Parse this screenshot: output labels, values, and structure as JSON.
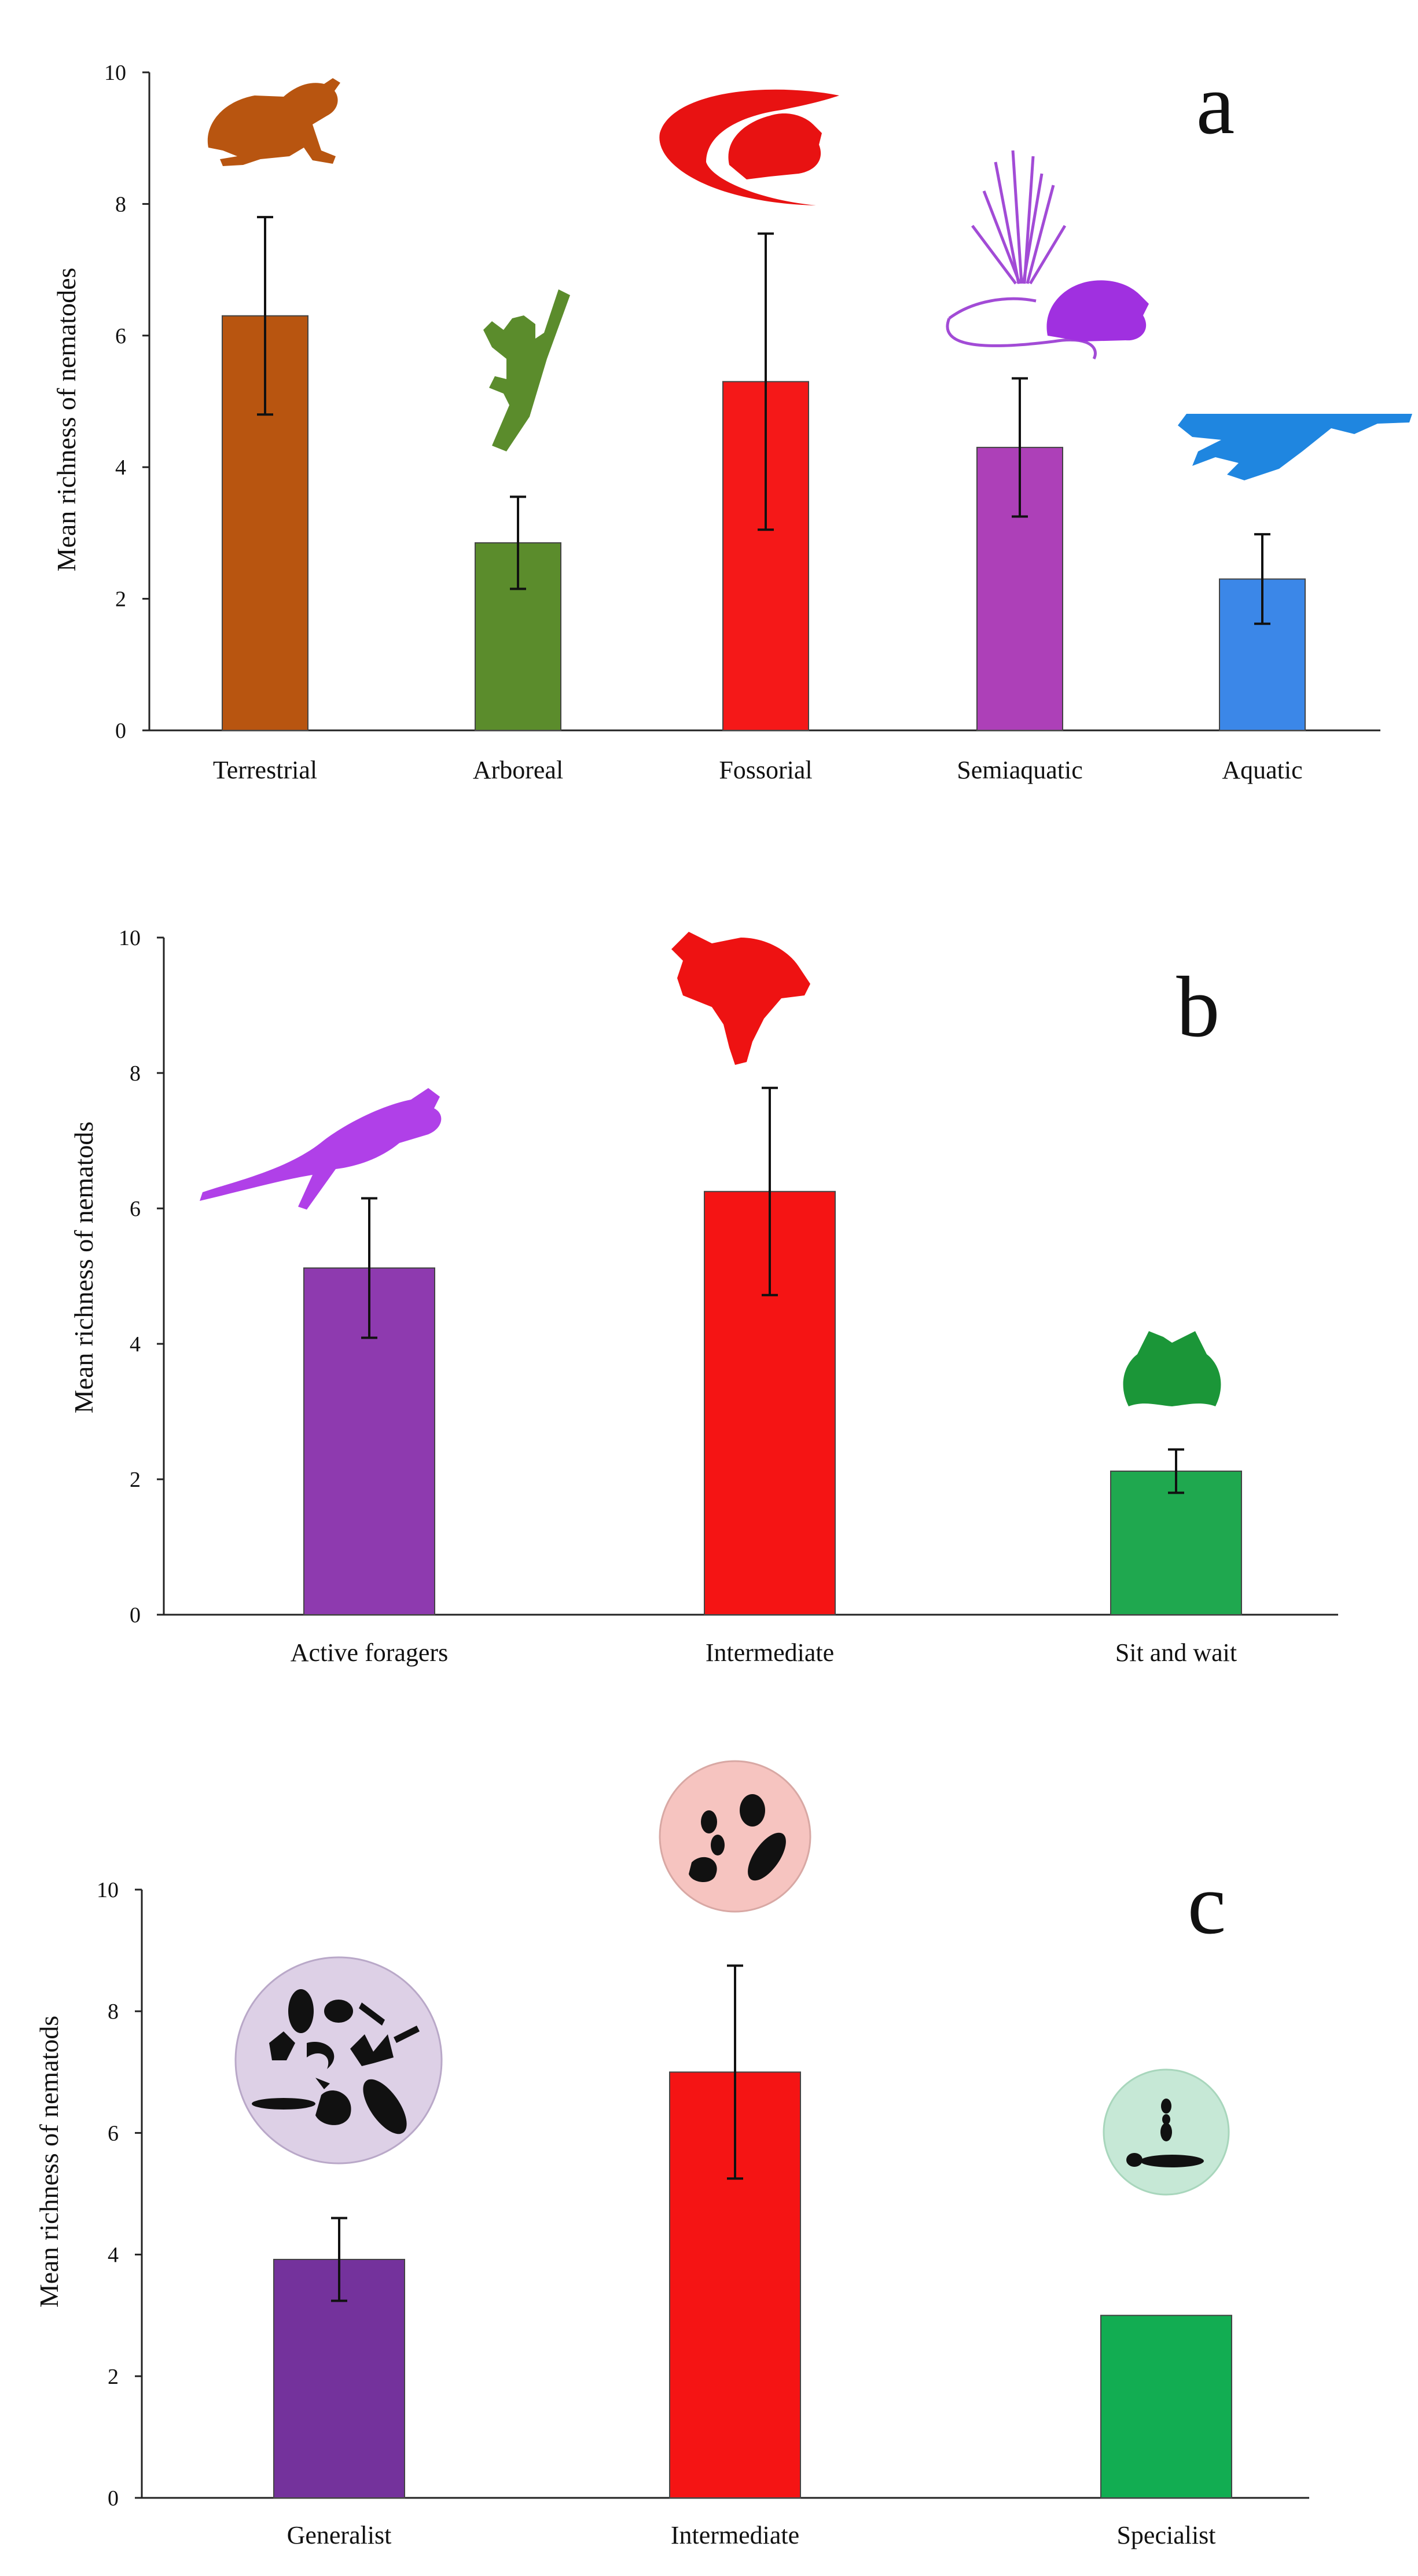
{
  "chart_data": [
    {
      "type": "bar",
      "panel": "a",
      "ylabel": "Mean  richness of nematodes",
      "ylim": [
        0,
        10
      ],
      "yticks": [
        "0",
        "2",
        "4",
        "6",
        "8",
        "10"
      ],
      "categories": [
        "Terrestrial",
        "Arboreal",
        "Fossorial",
        "Semiaquatic",
        "Aquatic"
      ],
      "values": [
        6.3,
        2.85,
        5.3,
        4.3,
        2.3
      ],
      "errors": [
        1.5,
        0.7,
        2.25,
        1.05,
        0.68
      ],
      "colors": [
        "#b85510",
        "#5b8c2c",
        "#f51818",
        "#ad40b8",
        "#3b87e8"
      ],
      "icons": [
        "frog-silhouette-icon",
        "tree-frog-on-branch-icon",
        "burrowing-frog-icon",
        "frog-with-grass-icon",
        "aquatic-frog-icon"
      ]
    },
    {
      "type": "bar",
      "panel": "b",
      "ylabel": "Mean  richness of nematods",
      "ylim": [
        0,
        10
      ],
      "yticks": [
        "0",
        "2",
        "4",
        "6",
        "8",
        "10"
      ],
      "categories": [
        "Active foragers",
        "Intermediate",
        "Sit and wait"
      ],
      "values": [
        5.12,
        6.25,
        2.12
      ],
      "errors": [
        1.03,
        1.53,
        0.32
      ],
      "colors": [
        "#8e3aaf",
        "#f51414",
        "#1fa84f"
      ],
      "icons": [
        "leaping-frog-icon",
        "climbing-frog-icon",
        "sitting-frog-icon"
      ]
    },
    {
      "type": "bar",
      "panel": "c",
      "ylabel": "Mean richness of nematods",
      "ylim": [
        0,
        10
      ],
      "yticks": [
        "0",
        "2",
        "4",
        "6",
        "8",
        "10"
      ],
      "categories": [
        "Generalist",
        "Intermediate",
        "Specialist"
      ],
      "values": [
        3.92,
        7.0,
        3.0
      ],
      "errors": [
        0.68,
        1.75,
        0
      ],
      "colors": [
        "#74329c",
        "#f51414",
        "#12ad52"
      ],
      "icons": [
        "mixed-prey-circle-icon",
        "insect-prey-circle-icon",
        "ant-prey-circle-icon"
      ],
      "icon_circle_colors": [
        "#ddd0e6",
        "#f6c4c0",
        "#c6e8d6"
      ]
    }
  ]
}
